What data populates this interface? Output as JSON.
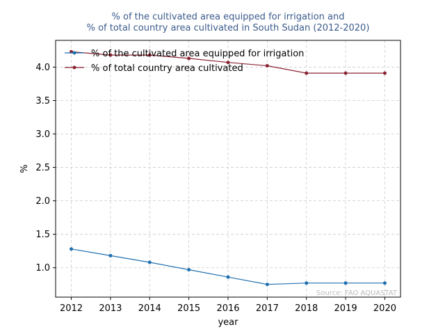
{
  "chart_data": {
    "type": "line",
    "title_lines": [
      "% of the cultivated area equipped for irrigation and",
      "% of total country area cultivated in South Sudan (2012-2020)"
    ],
    "xlabel": "year",
    "ylabel": "%",
    "x": [
      2012,
      2013,
      2014,
      2015,
      2016,
      2017,
      2018,
      2019,
      2020
    ],
    "xticks": [
      "2012",
      "2013",
      "2014",
      "2015",
      "2016",
      "2017",
      "2018",
      "2019",
      "2020"
    ],
    "xlim": [
      2011.6,
      2020.4
    ],
    "ylim": [
      0.56,
      4.4
    ],
    "yticks": [
      "1.0",
      "1.5",
      "2.0",
      "2.5",
      "3.0",
      "3.5",
      "4.0"
    ],
    "grid": true,
    "legend_position": "top-left",
    "series": [
      {
        "name": "% of the cultivated area equipped for irrigation",
        "color": "#1f6fb0",
        "values": [
          1.28,
          1.18,
          1.08,
          0.97,
          0.86,
          0.75,
          0.77,
          0.77,
          0.77
        ]
      },
      {
        "name": "% of total country area cultivated",
        "color": "#8b2332",
        "values": [
          4.23,
          4.18,
          4.18,
          4.13,
          4.07,
          4.02,
          3.91,
          3.91,
          3.91
        ]
      }
    ],
    "source_note": "Source: FAO AQUASTAT",
    "title_color": "#3a5a8c",
    "source_color": "#bbbbbb"
  }
}
